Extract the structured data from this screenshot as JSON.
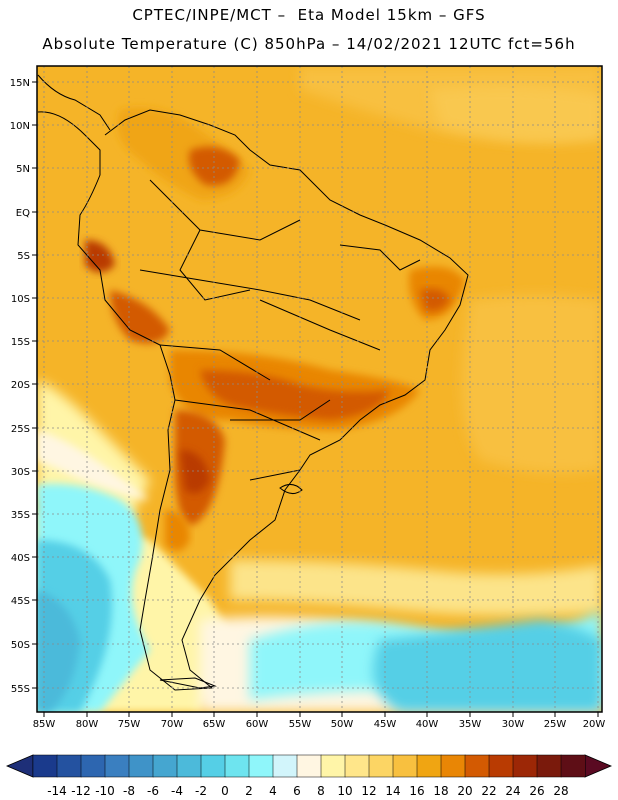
{
  "header": {
    "title_line1": "CPTEC/INPE/MCT –  Eta Model 15km – GFS",
    "title_line2": "Absolute Temperature (C) 850hPa – 14/02/2021 12UTC fct=56h"
  },
  "map": {
    "lat_labels": [
      "15N",
      "10N",
      "5N",
      "EQ",
      "5S",
      "10S",
      "15S",
      "20S",
      "25S",
      "30S",
      "35S",
      "40S",
      "45S",
      "50S",
      "55S"
    ],
    "lon_labels": [
      "85W",
      "80W",
      "75W",
      "70W",
      "65W",
      "60W",
      "55W",
      "50W",
      "45W",
      "40W",
      "35W",
      "30W",
      "25W",
      "20W"
    ]
  },
  "colorbar": {
    "ticks": [
      "-14",
      "-12",
      "-10",
      "-8",
      "-6",
      "-4",
      "-2",
      "0",
      "2",
      "4",
      "6",
      "8",
      "10",
      "12",
      "14",
      "16",
      "18",
      "20",
      "22",
      "24",
      "26",
      "28"
    ],
    "colors": [
      "#1a3a8c",
      "#2452a0",
      "#2d66b0",
      "#3a7fc0",
      "#3f93c8",
      "#45a6d0",
      "#4cbada",
      "#55cfe6",
      "#6ee4ef",
      "#8ff6fa",
      "#d2f5fb",
      "#fff6e2",
      "#fff5a8",
      "#ffe68a",
      "#fcd564",
      "#f8c03f",
      "#f0a512",
      "#e98605",
      "#d35a02",
      "#b93b02",
      "#9c2706",
      "#7a1a0c",
      "#5e0e16"
    ]
  }
}
